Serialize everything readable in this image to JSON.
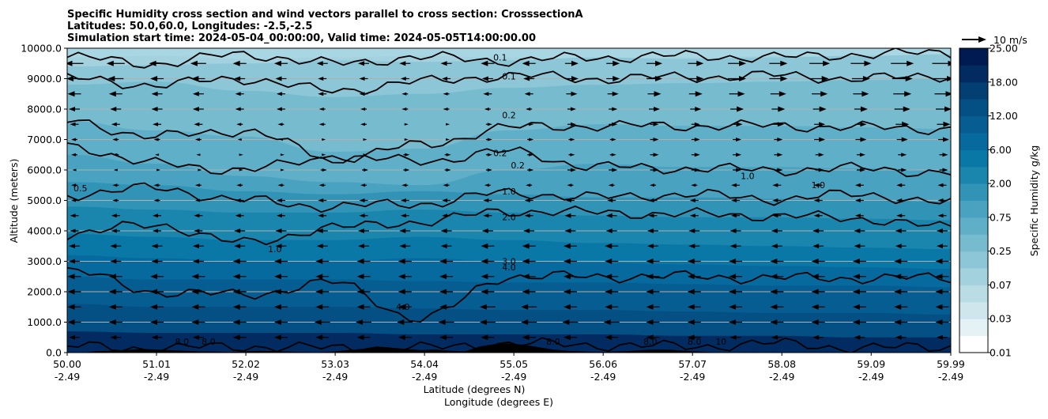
{
  "chart_data": {
    "type": "contour",
    "title_lines": [
      "Specific Humidity cross section and wind vectors parallel to cross section: CrosssectionA",
      "Latitudes: 50.0,60.0, Longitudes: -2.5,-2.5",
      "Simulation start time: 2024-05-04_00:00:00, Valid time: 2024-05-05T14:00:00.00"
    ],
    "xlabel_lat": "Latitude (degrees N)",
    "xlabel_lon": "Longitude (degrees E)",
    "ylabel": "Altitude (meters)",
    "x_ticks_lat": [
      "50.00",
      "51.01",
      "52.02",
      "53.03",
      "54.04",
      "55.05",
      "56.06",
      "57.07",
      "58.08",
      "59.09",
      "59.99"
    ],
    "x_ticks_lon": [
      "-2.49",
      "-2.49",
      "-2.49",
      "-2.49",
      "-2.49",
      "-2.49",
      "-2.49",
      "-2.49",
      "-2.49",
      "-2.49",
      "-2.49"
    ],
    "x_range": [
      50.0,
      59.99
    ],
    "ylim": [
      0,
      10000
    ],
    "y_ticks": [
      "0.0",
      "1000.0",
      "2000.0",
      "3000.0",
      "4000.0",
      "5000.0",
      "6000.0",
      "7000.0",
      "8000.0",
      "9000.0",
      "10000.0"
    ],
    "grid": "horizontal",
    "colorbar": {
      "label": "Specific Humidity g/kg",
      "ticks": [
        "0.01",
        "0.03",
        "0.07",
        "0.25",
        "0.75",
        "2.00",
        "6.00",
        "12.00",
        "18.00",
        "25.00"
      ],
      "colors": [
        "#ffffff",
        "#e5f2f5",
        "#cfe6ec",
        "#b9dce5",
        "#a3d1de",
        "#8dc6d7",
        "#77bbcf",
        "#5fafc8",
        "#48a2c0",
        "#3194b7",
        "#1a86ae",
        "#0a78a6",
        "#066a9e",
        "#055d92",
        "#045084",
        "#033f73",
        "#022c61",
        "#001a52"
      ]
    },
    "wind_key": "10 m/s",
    "contour_labels": [
      "0.1",
      "0.1",
      "0.2",
      "0.2",
      "0.2",
      "0.5",
      "1.0",
      "1.0",
      "1.0",
      "1.0",
      "2.0",
      "3.0",
      "4.0",
      "4.0",
      "8.0",
      "8.0",
      "8.0",
      "8.0",
      "8.0",
      "10"
    ],
    "humidity_layers": [
      {
        "level": 0.07,
        "alt": [
          9700,
          9750,
          9650,
          9700,
          9750,
          9700,
          9650,
          9700,
          9750,
          9700,
          9650
        ]
      },
      {
        "level": 0.1,
        "alt": [
          9400,
          9450,
          9500,
          9600,
          9550,
          9600,
          9700,
          9650,
          9700,
          9750,
          9800
        ]
      },
      {
        "level": 0.15,
        "alt": [
          8800,
          8900,
          8600,
          8400,
          8500,
          8700,
          8800,
          8850,
          8900,
          8950,
          9000
        ]
      },
      {
        "level": 0.2,
        "alt": [
          7600,
          7300,
          7100,
          6600,
          6700,
          7300,
          7500,
          7450,
          7450,
          7400,
          7350
        ]
      },
      {
        "level": 0.3,
        "alt": [
          6500,
          6200,
          5800,
          5600,
          5500,
          6000,
          6200,
          6100,
          6100,
          6050,
          6000
        ]
      },
      {
        "level": 0.5,
        "alt": [
          5600,
          5500,
          5300,
          5200,
          5300,
          5200,
          5100,
          5100,
          5050,
          5000,
          4950
        ]
      },
      {
        "level": 1.0,
        "alt": [
          4800,
          4700,
          4600,
          4600,
          4700,
          4600,
          4500,
          4450,
          4450,
          4400,
          4350
        ]
      },
      {
        "level": 2.0,
        "alt": [
          3900,
          3800,
          3700,
          3700,
          3800,
          3700,
          3600,
          3550,
          3500,
          3450,
          3400
        ]
      },
      {
        "level": 3.0,
        "alt": [
          3200,
          3100,
          3000,
          3000,
          3100,
          3000,
          2950,
          2900,
          2850,
          2800,
          2750
        ]
      },
      {
        "level": 4.0,
        "alt": [
          2500,
          2400,
          2400,
          2400,
          2350,
          2300,
          2300,
          2250,
          2200,
          2200,
          2150
        ]
      },
      {
        "level": 6.0,
        "alt": [
          1600,
          1500,
          1500,
          1500,
          1450,
          1400,
          1400,
          1350,
          1300,
          1300,
          1250
        ]
      },
      {
        "level": 8.0,
        "alt": [
          700,
          650,
          650,
          650,
          600,
          600,
          600,
          550,
          550,
          500,
          500
        ]
      }
    ],
    "contours": [
      {
        "label": "0.1",
        "alt": [
          9700,
          9500,
          9800,
          9500,
          9700,
          9600,
          9700,
          9750,
          9700,
          9800,
          9850
        ]
      },
      {
        "label": "0.1",
        "alt": [
          9000,
          8800,
          9000,
          8600,
          8900,
          9100,
          9000,
          9050,
          9100,
          9000,
          9100
        ]
      },
      {
        "label": "0.2",
        "alt": [
          7600,
          7100,
          7300,
          6400,
          6800,
          7400,
          7450,
          7450,
          7450,
          7400,
          7350
        ]
      },
      {
        "label": "0.2",
        "alt": [
          6800,
          6200,
          6000,
          6400,
          6300,
          6600,
          6100,
          6050,
          6000,
          6050,
          5900
        ]
      },
      {
        "label": "1.0",
        "alt": [
          5200,
          5400,
          5000,
          4800,
          4900,
          5250,
          5100,
          5200,
          5050,
          5200,
          4900
        ]
      },
      {
        "label": "2.0",
        "alt": [
          3900,
          4200,
          3600,
          4100,
          4300,
          4650,
          4600,
          4550,
          4500,
          4400,
          4100
        ]
      },
      {
        "label": "4.0",
        "alt": [
          2700,
          2000,
          1900,
          2300,
          1100,
          2500,
          2500,
          2500,
          2450,
          2450,
          2450
        ]
      },
      {
        "label": "8.0",
        "alt": [
          200,
          150,
          200,
          150,
          150,
          300,
          250,
          200,
          300,
          150,
          200
        ]
      }
    ],
    "wind_rows": [
      {
        "alt": 9500,
        "u": [
          -7,
          -6,
          -5,
          -4,
          -4,
          -5,
          5,
          6,
          7,
          8,
          9
        ]
      },
      {
        "alt": 9000,
        "u": [
          -6,
          -5,
          -4,
          -3,
          -3,
          -4,
          5,
          6,
          7,
          7,
          8
        ]
      },
      {
        "alt": 8500,
        "u": [
          -5,
          -4,
          -3,
          -3,
          -2,
          -3,
          4,
          5,
          6,
          6,
          7
        ]
      },
      {
        "alt": 8000,
        "u": [
          -4,
          -4,
          -3,
          -2,
          -2,
          -2,
          3,
          4,
          5,
          5,
          6
        ]
      },
      {
        "alt": 7500,
        "u": [
          -3,
          -3,
          -2,
          -2,
          1,
          2,
          3,
          3,
          4,
          4,
          5
        ]
      },
      {
        "alt": 7000,
        "u": [
          -2,
          -2,
          -1,
          1,
          1,
          2,
          2,
          3,
          3,
          4,
          4
        ]
      },
      {
        "alt": 6500,
        "u": [
          -2,
          -1,
          1,
          1,
          2,
          2,
          2,
          3,
          3,
          3,
          3
        ]
      },
      {
        "alt": 6000,
        "u": [
          -1,
          1,
          1,
          2,
          2,
          2,
          3,
          3,
          3,
          3,
          3
        ]
      },
      {
        "alt": 5500,
        "u": [
          -2,
          -2,
          -2,
          -2,
          -2,
          -2,
          -2,
          -2,
          -3,
          -3,
          -3
        ]
      },
      {
        "alt": 5000,
        "u": [
          -2,
          -2,
          -3,
          -3,
          -3,
          -3,
          -3,
          -3,
          -3,
          -3,
          -3
        ]
      },
      {
        "alt": 4500,
        "u": [
          -3,
          -3,
          -3,
          -3,
          -3,
          -3,
          -4,
          -3,
          -3,
          -3,
          -3
        ]
      },
      {
        "alt": 4000,
        "u": [
          -3,
          -3,
          -4,
          -4,
          -4,
          -4,
          -4,
          -4,
          -4,
          -4,
          -4
        ]
      },
      {
        "alt": 3500,
        "u": [
          -4,
          -4,
          -4,
          -4,
          -4,
          -5,
          -5,
          -4,
          -4,
          -4,
          -4
        ]
      },
      {
        "alt": 3000,
        "u": [
          -4,
          -4,
          -5,
          -5,
          -5,
          -5,
          -5,
          -5,
          -5,
          -5,
          -5
        ]
      },
      {
        "alt": 2500,
        "u": [
          -5,
          -5,
          -5,
          -5,
          -5,
          -5,
          -5,
          -5,
          -5,
          -5,
          -5
        ]
      },
      {
        "alt": 2000,
        "u": [
          -5,
          -5,
          -5,
          -5,
          -5,
          -5,
          -5,
          -5,
          -5,
          -5,
          -5
        ]
      },
      {
        "alt": 1500,
        "u": [
          -5,
          -5,
          -5,
          -5,
          -5,
          -6,
          -5,
          -5,
          -5,
          -5,
          -5
        ]
      },
      {
        "alt": 1000,
        "u": [
          -5,
          -5,
          -5,
          -6,
          -6,
          -6,
          -6,
          -5,
          -5,
          -5,
          -5
        ]
      },
      {
        "alt": 500,
        "u": [
          -4,
          -4,
          -5,
          -5,
          -5,
          -5,
          -5,
          -5,
          -4,
          -4,
          -4
        ]
      }
    ],
    "terrain": [
      0,
      0,
      50,
      60,
      80,
      120,
      100,
      80,
      60,
      40,
      30,
      20,
      40,
      60,
      50,
      30,
      20,
      10,
      30,
      80,
      120,
      200,
      160,
      120,
      80,
      100,
      60,
      40,
      200,
      280,
      300,
      260,
      180,
      100,
      60,
      40,
      20,
      30,
      50,
      80,
      100,
      90,
      60,
      30,
      10,
      0,
      0,
      0,
      0,
      0,
      0,
      0,
      0,
      0,
      0,
      0,
      0,
      0,
      0,
      0,
      0
    ]
  }
}
